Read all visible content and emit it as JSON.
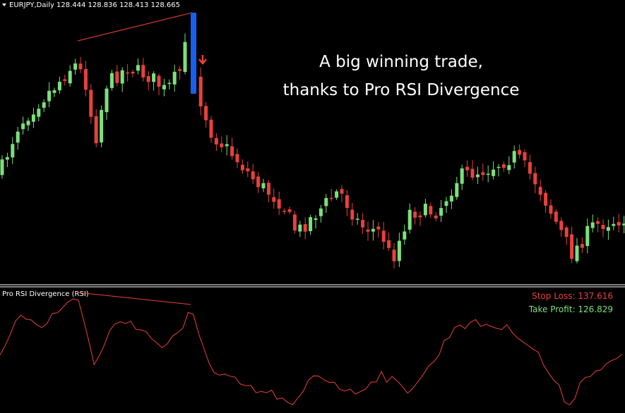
{
  "header": {
    "symbol": "EURJPY,Daily",
    "ohlc": "128.444 128.836 128.413 128.665"
  },
  "annotation": {
    "line1": "A big winning trade,",
    "line2": "thanks to Pro RSI Divergence"
  },
  "indicator": {
    "title": "Pro RSI Divergence (RSI)",
    "stop_loss": "Stop Loss: 137.616",
    "take_profit": "Take Profit: 126.829"
  }
}
